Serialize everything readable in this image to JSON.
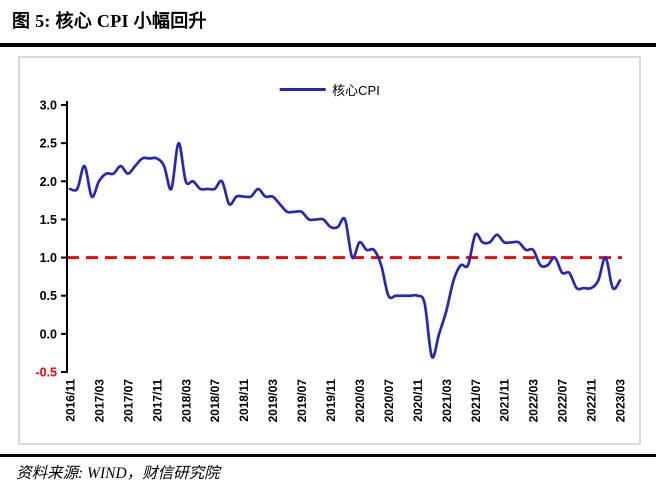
{
  "figure": {
    "title": "图 5: 核心 CPI 小幅回升",
    "source": "资料来源: WIND，财信研究院"
  },
  "chart_data": {
    "type": "line",
    "title": "",
    "legend_position": "top-center",
    "grid": false,
    "ylim": [
      -0.5,
      3.0
    ],
    "ytick_step": 0.5,
    "ytick_labels": [
      "3.0",
      "2.5",
      "2.0",
      "1.5",
      "1.0",
      "0.5",
      "0.0",
      "-0.5"
    ],
    "negative_tick_color": "#ff0000",
    "axis_color": "#000000",
    "x_tick_every": 4,
    "x": [
      "2016/11",
      "2016/12",
      "2017/01",
      "2017/02",
      "2017/03",
      "2017/04",
      "2017/05",
      "2017/06",
      "2017/07",
      "2017/08",
      "2017/09",
      "2017/10",
      "2017/11",
      "2017/12",
      "2018/01",
      "2018/02",
      "2018/03",
      "2018/04",
      "2018/05",
      "2018/06",
      "2018/07",
      "2018/08",
      "2018/09",
      "2018/10",
      "2018/11",
      "2018/12",
      "2019/01",
      "2019/02",
      "2019/03",
      "2019/04",
      "2019/05",
      "2019/06",
      "2019/07",
      "2019/08",
      "2019/09",
      "2019/10",
      "2019/11",
      "2019/12",
      "2020/01",
      "2020/02",
      "2020/03",
      "2020/04",
      "2020/05",
      "2020/06",
      "2020/07",
      "2020/08",
      "2020/09",
      "2020/10",
      "2020/11",
      "2020/12",
      "2021/01",
      "2021/02",
      "2021/03",
      "2021/04",
      "2021/05",
      "2021/06",
      "2021/07",
      "2021/08",
      "2021/09",
      "2021/10",
      "2021/11",
      "2021/12",
      "2022/01",
      "2022/02",
      "2022/03",
      "2022/04",
      "2022/05",
      "2022/06",
      "2022/07",
      "2022/08",
      "2022/09",
      "2022/10",
      "2022/11",
      "2022/12",
      "2023/01",
      "2023/02",
      "2023/03"
    ],
    "x_axis_tick_labels_visible": [
      "2016/11",
      "2017/03",
      "2017/07",
      "2017/11",
      "2018/03",
      "2018/07",
      "2018/11",
      "2019/03",
      "2019/07",
      "2019/11",
      "2020/03",
      "2020/07",
      "2020/11",
      "2021/03",
      "2021/07",
      "2021/11",
      "2022/03",
      "2022/07",
      "2022/11",
      "2023/03"
    ],
    "series": [
      {
        "name": "核心CPI",
        "color": "#2525c0",
        "values": [
          1.9,
          1.9,
          2.2,
          1.8,
          2.0,
          2.1,
          2.1,
          2.2,
          2.1,
          2.2,
          2.3,
          2.3,
          2.3,
          2.2,
          1.9,
          2.5,
          2.0,
          2.0,
          1.9,
          1.9,
          1.9,
          2.0,
          1.7,
          1.8,
          1.8,
          1.8,
          1.9,
          1.8,
          1.8,
          1.7,
          1.6,
          1.6,
          1.6,
          1.5,
          1.5,
          1.5,
          1.4,
          1.4,
          1.5,
          1.0,
          1.2,
          1.1,
          1.1,
          0.9,
          0.5,
          0.5,
          0.5,
          0.5,
          0.5,
          0.4,
          -0.3,
          0.0,
          0.3,
          0.7,
          0.9,
          0.9,
          1.3,
          1.2,
          1.2,
          1.3,
          1.2,
          1.2,
          1.2,
          1.1,
          1.1,
          0.9,
          0.9,
          1.0,
          0.8,
          0.8,
          0.6,
          0.6,
          0.6,
          0.7,
          1.0,
          0.6,
          0.7
        ]
      }
    ],
    "reference_line": {
      "value": 1.0,
      "color": "#ff0000",
      "style": "dashed"
    }
  }
}
